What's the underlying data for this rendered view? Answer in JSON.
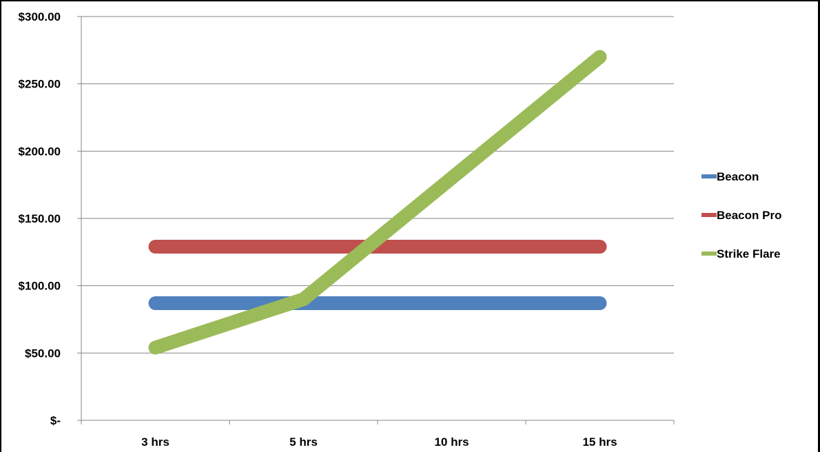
{
  "chart_data": {
    "type": "line",
    "title": "",
    "xlabel": "",
    "ylabel": "",
    "categories": [
      "3 hrs",
      "5 hrs",
      "10 hrs",
      "15 hrs"
    ],
    "ylim": [
      0,
      300
    ],
    "yticks": [
      0,
      50,
      100,
      150,
      200,
      250,
      300
    ],
    "ytick_labels": [
      "$-",
      "$50.00",
      "$100.00",
      "$150.00",
      "$200.00",
      "$250.00",
      "$300.00"
    ],
    "grid": true,
    "legend_position": "right",
    "series": [
      {
        "name": "Beacon",
        "values": [
          87,
          87,
          87,
          87
        ],
        "color": "#4f81bd"
      },
      {
        "name": "Beacon Pro",
        "values": [
          129,
          129,
          129,
          129
        ],
        "color": "#c0504d"
      },
      {
        "name": "Strike Flare",
        "values": [
          54,
          90,
          180,
          270
        ],
        "color": "#9bbb59"
      }
    ]
  }
}
